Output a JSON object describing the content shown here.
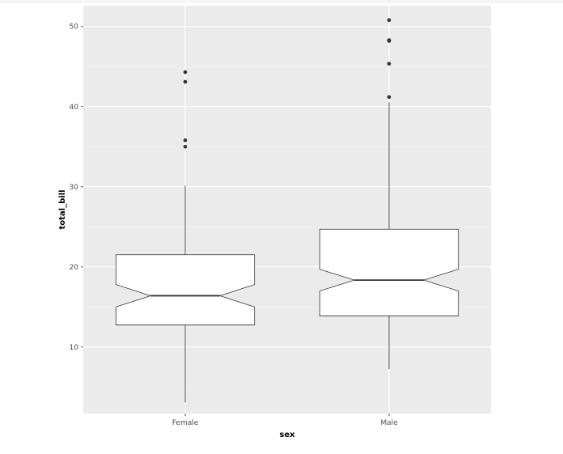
{
  "chart_data": {
    "type": "boxplot",
    "title": "",
    "xlabel": "sex",
    "ylabel": "total_bill",
    "ylim": [
      1.7,
      52.6
    ],
    "grid": true,
    "notched": true,
    "y_ticks": [
      10,
      20,
      30,
      40,
      50
    ],
    "y_tick_labels": [
      "10",
      "20",
      "30",
      "40",
      "50"
    ],
    "categories": [
      "Female",
      "Male"
    ],
    "boxes": [
      {
        "category": "Female",
        "whisker_low": 3.07,
        "q1": 12.75,
        "median": 16.4,
        "q3": 21.52,
        "whisker_high": 30.14,
        "notch_low": 15.0,
        "notch_high": 17.8,
        "outliers": [
          35.0,
          35.8,
          43.1,
          44.3
        ]
      },
      {
        "category": "Male",
        "whisker_low": 7.25,
        "q1": 13.9,
        "median": 18.35,
        "q3": 24.7,
        "whisker_high": 40.55,
        "notch_low": 17.0,
        "notch_high": 19.7,
        "outliers": [
          41.2,
          45.35,
          48.2,
          48.3,
          50.8
        ]
      }
    ],
    "colors": {
      "panel": "#ebebeb",
      "grid_major": "#ffffff",
      "box_fill": "#ffffff",
      "box_line": "#333333",
      "outlier": "#333333",
      "tick_text": "#4d4d4d"
    }
  }
}
